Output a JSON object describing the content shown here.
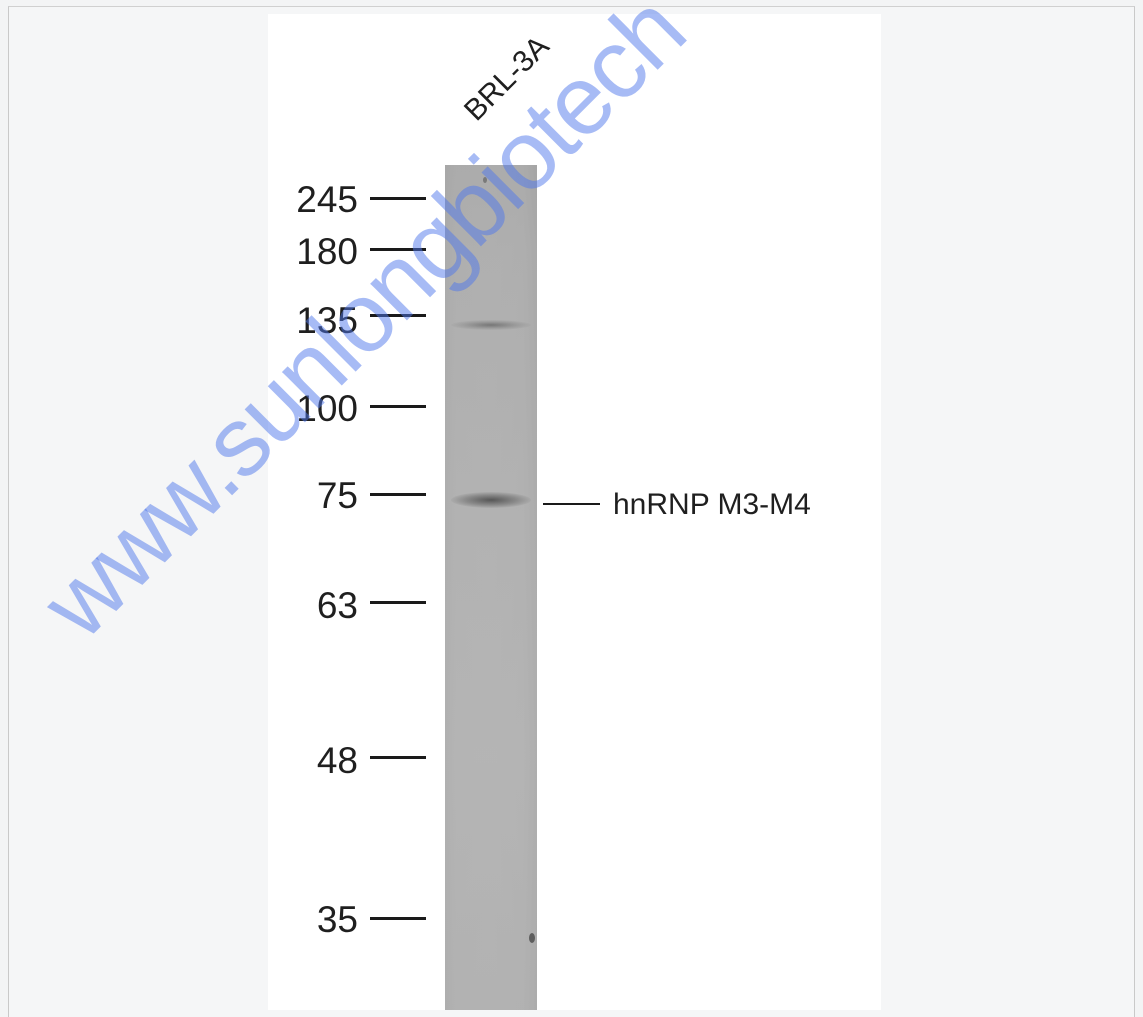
{
  "lane": {
    "label": "BRL-3A"
  },
  "markers": [
    {
      "value": "245"
    },
    {
      "value": "180"
    },
    {
      "value": "135"
    },
    {
      "value": "100"
    },
    {
      "value": "75"
    },
    {
      "value": "63"
    },
    {
      "value": "48"
    },
    {
      "value": "35"
    }
  ],
  "target": {
    "label": "hnRNP M3-M4"
  },
  "watermark": {
    "text": "www.sunlongbiotech"
  },
  "colors": {
    "watermark": "#5078eb",
    "lane": "#b3b3b3",
    "background": "#f5f6f7"
  }
}
